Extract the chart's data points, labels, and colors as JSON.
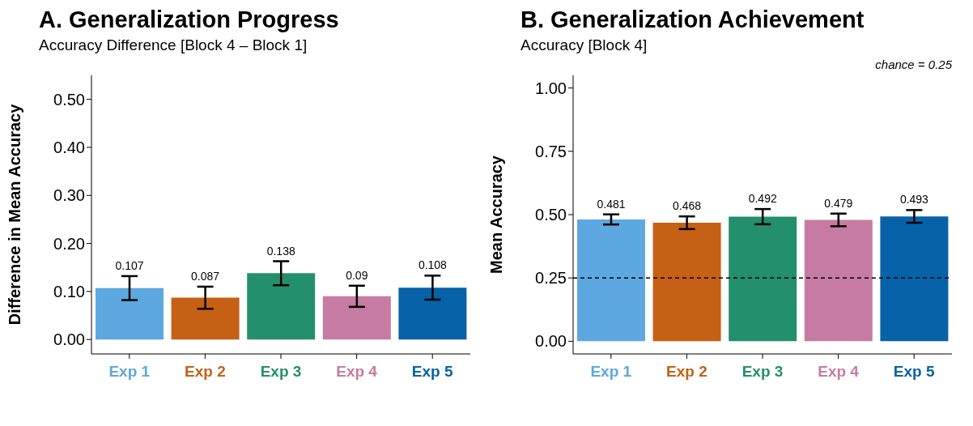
{
  "chart_data": [
    {
      "type": "bar",
      "title": "A. Generalization Progress",
      "subtitle": "Accuracy Difference [Block 4 – Block 1]",
      "ylabel": "Difference in Mean Accuracy",
      "categories": [
        "Exp 1",
        "Exp 2",
        "Exp 3",
        "Exp 4",
        "Exp 5"
      ],
      "values": [
        0.107,
        0.087,
        0.138,
        0.09,
        0.108
      ],
      "errors": [
        0.025,
        0.023,
        0.025,
        0.022,
        0.025
      ],
      "colors": [
        "#5da8e0",
        "#c56015",
        "#248f6d",
        "#c67ca2",
        "#0762a8"
      ],
      "ylim": [
        -0.03,
        0.55
      ],
      "yticks": [
        {
          "value": 0,
          "label": "0.00"
        },
        {
          "value": 0.1,
          "label": "0.10"
        },
        {
          "value": 0.2,
          "label": "0.20"
        },
        {
          "value": 0.3,
          "label": "0.30"
        },
        {
          "value": 0.4,
          "label": "0.40"
        },
        {
          "value": 0.5,
          "label": "0.50"
        }
      ],
      "data_labels": true,
      "grid": false
    },
    {
      "type": "bar",
      "title": "B. Generalization Achievement",
      "subtitle": "Accuracy [Block 4]",
      "ylabel": "Mean Accuracy",
      "categories": [
        "Exp 1",
        "Exp 2",
        "Exp 3",
        "Exp 4",
        "Exp 5"
      ],
      "values": [
        0.481,
        0.468,
        0.492,
        0.479,
        0.493
      ],
      "errors": [
        0.02,
        0.025,
        0.03,
        0.025,
        0.025
      ],
      "colors": [
        "#5da8e0",
        "#c56015",
        "#248f6d",
        "#c67ca2",
        "#0762a8"
      ],
      "ylim": [
        -0.05,
        1.05
      ],
      "yticks": [
        {
          "value": 0,
          "label": "0.00"
        },
        {
          "value": 0.25,
          "label": "0.25"
        },
        {
          "value": 0.5,
          "label": "0.50"
        },
        {
          "value": 0.75,
          "label": "0.75"
        },
        {
          "value": 1,
          "label": "1.00"
        }
      ],
      "ref_lines": [
        {
          "axis": "y",
          "value": 0.25,
          "label": "chance = 0.25",
          "color": "#000000",
          "line_style": "dashed"
        }
      ],
      "data_labels": true,
      "grid": false
    }
  ]
}
